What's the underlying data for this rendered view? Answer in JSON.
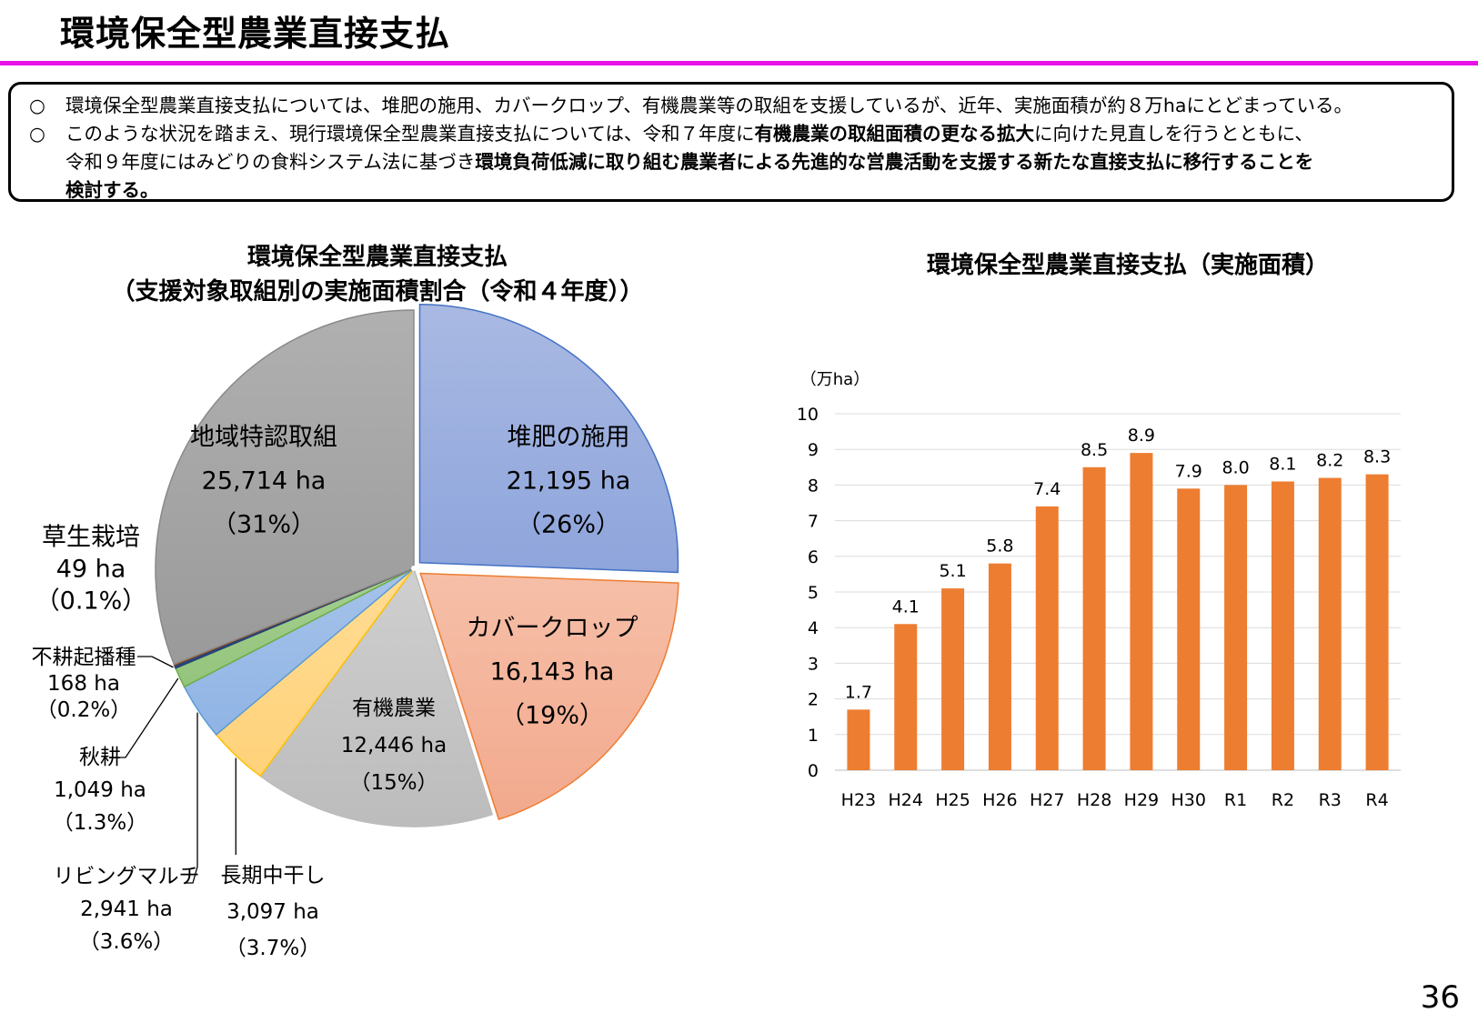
{
  "page": {
    "title": "環境保全型農業直接支払",
    "page_number": "36",
    "rule_color": "#e812e8"
  },
  "summary": {
    "bullet_mark": "○",
    "b1": "環境保全型農業直接支払については、堆肥の施用、カバークロップ、有機農業等の取組を支援しているが、近年、実施面積が約８万haにとどまっている。",
    "b2_part1": "このような状況を踏まえ、現行環境保全型農業直接支払については、令和７年度に",
    "b2_bold1": "有機農業の取組面積の更なる拡大",
    "b2_part2": "に向けた見直しを行うとともに、",
    "b2_line2_part1": "令和９年度にはみどりの食料システム法に基づき",
    "b2_line2_bold": "環境負荷低減に取り組む農業者による先進的な営農活動を支援する新たな直接支払に移行することを",
    "b2_line3_bold": "検討する。"
  },
  "chart_data": [
    {
      "type": "pie",
      "title": "環境保全型農業直接支払",
      "subtitle": "（支援対象取組別の実施面積割合（令和４年度））",
      "unit": "ha",
      "slices": [
        {
          "name": "堆肥の施用",
          "value": 21195,
          "area_label": "21,195 ha",
          "pct_label": "（26%）",
          "color": "#8ea5dc",
          "color2": "#a9b9e2",
          "stroke": "#4472c4"
        },
        {
          "name": "カバークロップ",
          "value": 16143,
          "area_label": "16,143 ha",
          "pct_label": "（19%）",
          "color": "#f2a98d",
          "color2": "#f6bfa8",
          "stroke": "#ed7d31"
        },
        {
          "name": "有機農業",
          "value": 12446,
          "area_label": "12,446 ha",
          "pct_label": "（15%）",
          "color": "#bcbcbc",
          "color2": "#cfcfcf",
          "stroke": "#bcbcbc"
        },
        {
          "name": "長期中干し",
          "value": 3097,
          "area_label": "3,097 ha",
          "pct_label": "（3.7%）",
          "color": "#ffd27a",
          "color2": "#ffdc94",
          "stroke": "#ffc000"
        },
        {
          "name": "リビングマルチ",
          "value": 2941,
          "area_label": "2,941 ha",
          "pct_label": "（3.6%）",
          "color": "#8fb4e4",
          "color2": "#a6c3ea",
          "stroke": "#5b9bd5"
        },
        {
          "name": "秋耕",
          "value": 1049,
          "area_label": "1,049 ha",
          "pct_label": "（1.3%）",
          "color": "#93c47d",
          "color2": "#a6d08f",
          "stroke": "#70ad47"
        },
        {
          "name": "不耕起播種",
          "value": 168,
          "area_label": "168 ha",
          "pct_label": "（0.2%）",
          "color": "#264478",
          "color2": "#264478",
          "stroke": "#264478"
        },
        {
          "name": "草生栽培",
          "value": 49,
          "area_label": "49 ha",
          "pct_label": "（0.1%）",
          "color": "#9e480e",
          "color2": "#9e480e",
          "stroke": "#9e480e"
        },
        {
          "name": "地域特認取組",
          "value": 25714,
          "area_label": "25,714 ha",
          "pct_label": "（31%）",
          "color": "#9a9a9a",
          "color2": "#b0b0b0",
          "stroke": "#8a8a8a"
        }
      ]
    },
    {
      "type": "bar",
      "title": "環境保全型農業直接支払（実施面積）",
      "unit_label": "（万ha）",
      "categories": [
        "H23",
        "H24",
        "H25",
        "H26",
        "H27",
        "H28",
        "H29",
        "H30",
        "R1",
        "R2",
        "R3",
        "R4"
      ],
      "values": [
        1.7,
        4.1,
        5.1,
        5.8,
        7.4,
        8.5,
        8.9,
        7.9,
        8.0,
        8.1,
        8.2,
        8.3
      ],
      "value_labels": [
        "1.7",
        "4.1",
        "5.1",
        "5.8",
        "7.4",
        "8.5",
        "8.9",
        "7.9",
        "8.0",
        "8.1",
        "8.2",
        "8.3"
      ],
      "ylim": [
        0,
        10
      ],
      "yticks": [
        "0",
        "1",
        "2",
        "3",
        "4",
        "5",
        "6",
        "7",
        "8",
        "9",
        "10"
      ],
      "color": "#ed7d31",
      "grid": true
    }
  ]
}
